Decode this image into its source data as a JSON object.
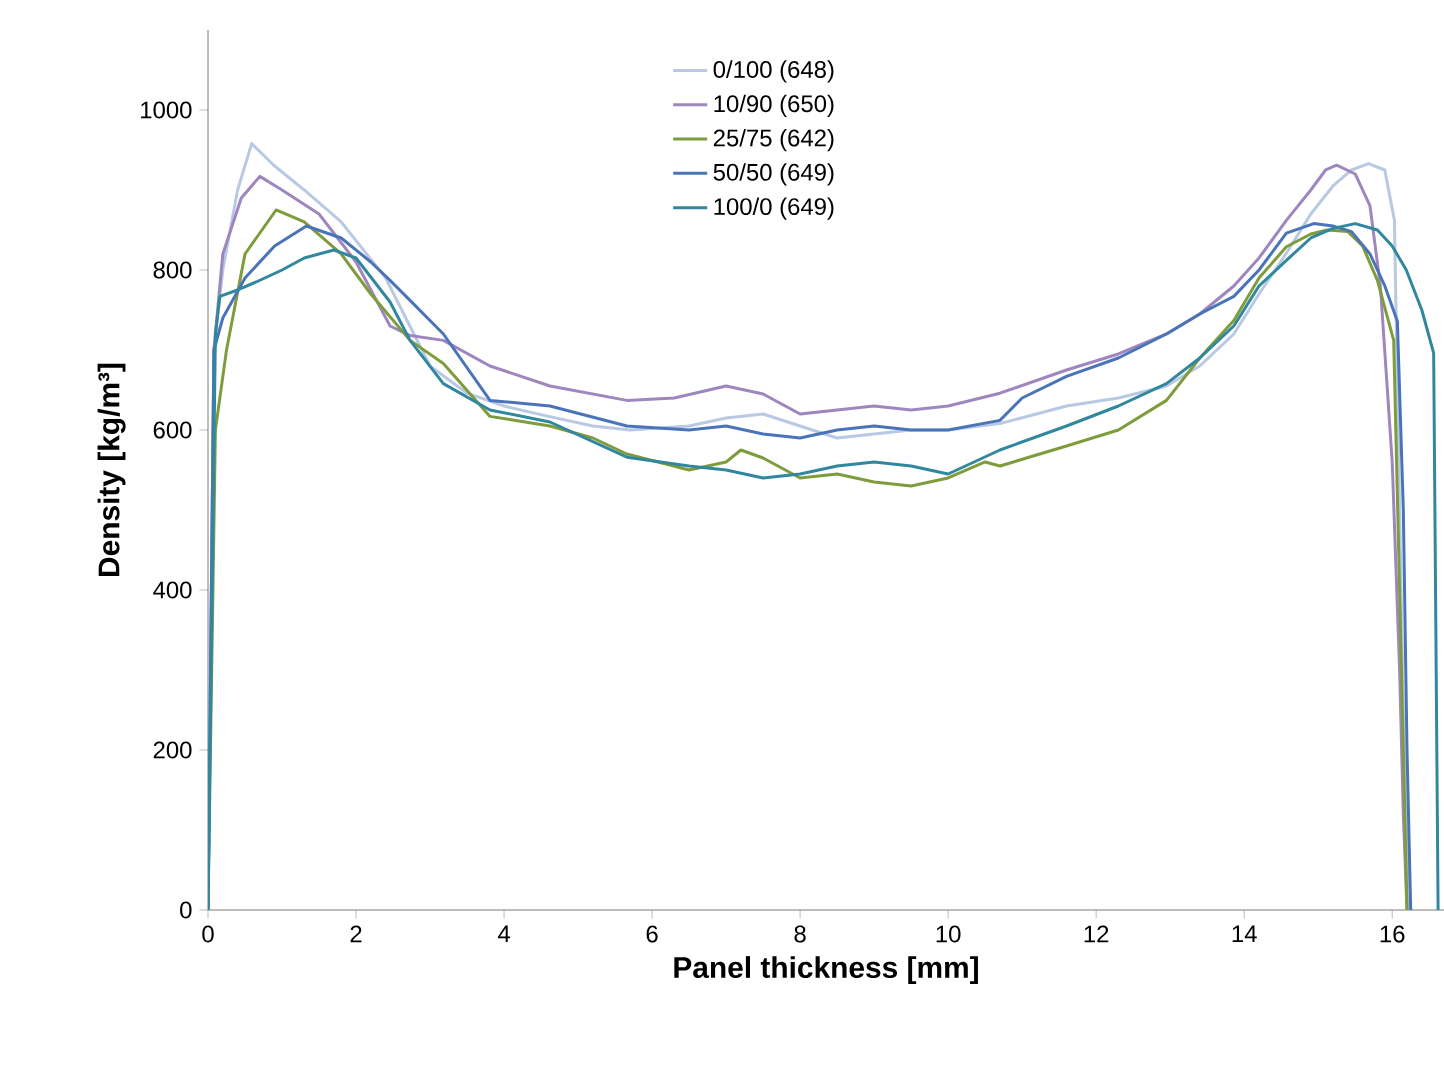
{
  "chart_data": {
    "type": "line",
    "xlabel": "Panel thickness [mm]",
    "ylabel": "Density [kg/m³]",
    "xlim": [
      0,
      16.7
    ],
    "ylim": [
      0,
      1100
    ],
    "xticks": [
      0,
      2,
      4,
      6,
      8,
      10,
      12,
      14,
      16
    ],
    "yticks": [
      0,
      200,
      400,
      600,
      800,
      1000
    ],
    "grid": false,
    "legend": "top",
    "marker": "none",
    "line_style": "solid",
    "series": [
      {
        "name": "0/100 (648)",
        "color": "#b9c9e4",
        "x": [
          0,
          0.08,
          0.2,
          0.4,
          0.59,
          0.9,
          1.3,
          1.8,
          2.4,
          3.0,
          3.5,
          4.0,
          4.6,
          5.2,
          5.7,
          6.5,
          7.0,
          7.5,
          8.0,
          8.5,
          9.0,
          9.5,
          10.0,
          10.7,
          11.6,
          12.3,
          12.95,
          13.4,
          13.86,
          14.2,
          14.57,
          14.9,
          15.2,
          15.45,
          15.68,
          15.9,
          16.03,
          16.08,
          16.15,
          16.22
        ],
        "values": [
          0,
          700,
          800,
          900,
          958,
          930,
          900,
          860,
          790,
          680,
          646,
          630,
          617,
          605,
          600,
          605,
          615,
          620,
          605,
          590,
          595,
          600,
          600,
          608,
          630,
          640,
          655,
          680,
          720,
          770,
          821,
          870,
          905,
          925,
          933,
          925,
          862,
          600,
          250,
          0
        ]
      },
      {
        "name": "10/90 (650)",
        "color": "#9e86be",
        "x": [
          0,
          0.08,
          0.2,
          0.45,
          0.7,
          1.0,
          1.5,
          2.0,
          2.46,
          2.73,
          3.18,
          3.81,
          4.62,
          5.66,
          6.3,
          7.0,
          7.5,
          8.0,
          8.5,
          9.0,
          9.5,
          10.0,
          10.7,
          11.6,
          12.3,
          12.95,
          13.4,
          13.86,
          14.2,
          14.57,
          14.9,
          15.1,
          15.25,
          15.5,
          15.7,
          15.84,
          16.0,
          16.1,
          16.15,
          16.2
        ],
        "values": [
          0,
          700,
          820,
          890,
          917,
          900,
          870,
          810,
          730,
          718,
          712,
          680,
          655,
          637,
          640,
          655,
          645,
          620,
          625,
          630,
          625,
          630,
          646,
          675,
          695,
          720,
          745,
          780,
          815,
          862,
          900,
          925,
          931,
          920,
          880,
          780,
          560,
          300,
          120,
          0
        ]
      },
      {
        "name": "25/75 (642)",
        "color": "#7f9c3c",
        "x": [
          0,
          0.1,
          0.25,
          0.5,
          0.92,
          1.3,
          1.8,
          2.2,
          2.73,
          3.18,
          3.81,
          4.62,
          5.2,
          5.66,
          6.5,
          7.0,
          7.2,
          7.5,
          8.0,
          8.5,
          9.0,
          9.5,
          10.0,
          10.5,
          10.7,
          11.6,
          12.3,
          12.95,
          13.4,
          13.86,
          14.2,
          14.57,
          14.9,
          15.12,
          15.4,
          15.6,
          15.8,
          16.02,
          16.1,
          16.2
        ],
        "values": [
          0,
          600,
          700,
          820,
          875,
          860,
          820,
          770,
          712,
          683,
          617,
          605,
          590,
          570,
          550,
          560,
          575,
          565,
          540,
          545,
          535,
          530,
          540,
          560,
          555,
          580,
          600,
          637,
          690,
          737,
          790,
          829,
          845,
          850,
          848,
          830,
          787,
          712,
          400,
          0
        ]
      },
      {
        "name": "50/50 (649)",
        "color": "#4a74b8",
        "x": [
          0,
          0.08,
          0.2,
          0.5,
          0.9,
          1.33,
          1.8,
          2.2,
          2.46,
          2.73,
          3.18,
          3.81,
          4.62,
          5.66,
          6.5,
          7.0,
          7.5,
          8.0,
          8.5,
          9.0,
          9.5,
          10.0,
          10.7,
          11.0,
          11.6,
          12.3,
          12.95,
          13.4,
          13.86,
          14.2,
          14.57,
          14.94,
          15.2,
          15.45,
          15.7,
          15.9,
          16.07,
          16.15,
          16.2,
          16.25
        ],
        "values": [
          0,
          700,
          740,
          790,
          830,
          855,
          840,
          810,
          787,
          762,
          720,
          637,
          630,
          605,
          600,
          605,
          595,
          590,
          600,
          605,
          600,
          600,
          612,
          640,
          667,
          690,
          720,
          745,
          767,
          800,
          846,
          858,
          855,
          848,
          820,
          780,
          736,
          500,
          200,
          0
        ]
      },
      {
        "name": "100/0 (649)",
        "color": "#31879e",
        "x": [
          0,
          0.1,
          0.16,
          0.4,
          0.65,
          1.0,
          1.3,
          1.7,
          2.0,
          2.46,
          2.73,
          3.18,
          3.81,
          4.62,
          5.66,
          6.5,
          7.0,
          7.5,
          8.0,
          8.5,
          9.0,
          9.5,
          10.0,
          10.7,
          11.6,
          12.3,
          12.95,
          13.4,
          13.86,
          14.2,
          14.57,
          14.9,
          15.2,
          15.5,
          15.8,
          16.0,
          16.19,
          16.4,
          16.56,
          16.62
        ],
        "values": [
          0,
          720,
          767,
          775,
          785,
          800,
          815,
          825,
          815,
          760,
          712,
          658,
          625,
          610,
          566,
          555,
          550,
          540,
          545,
          555,
          560,
          555,
          545,
          575,
          605,
          630,
          658,
          690,
          730,
          780,
          812,
          840,
          852,
          858,
          850,
          830,
          800,
          750,
          696,
          0
        ]
      }
    ]
  }
}
